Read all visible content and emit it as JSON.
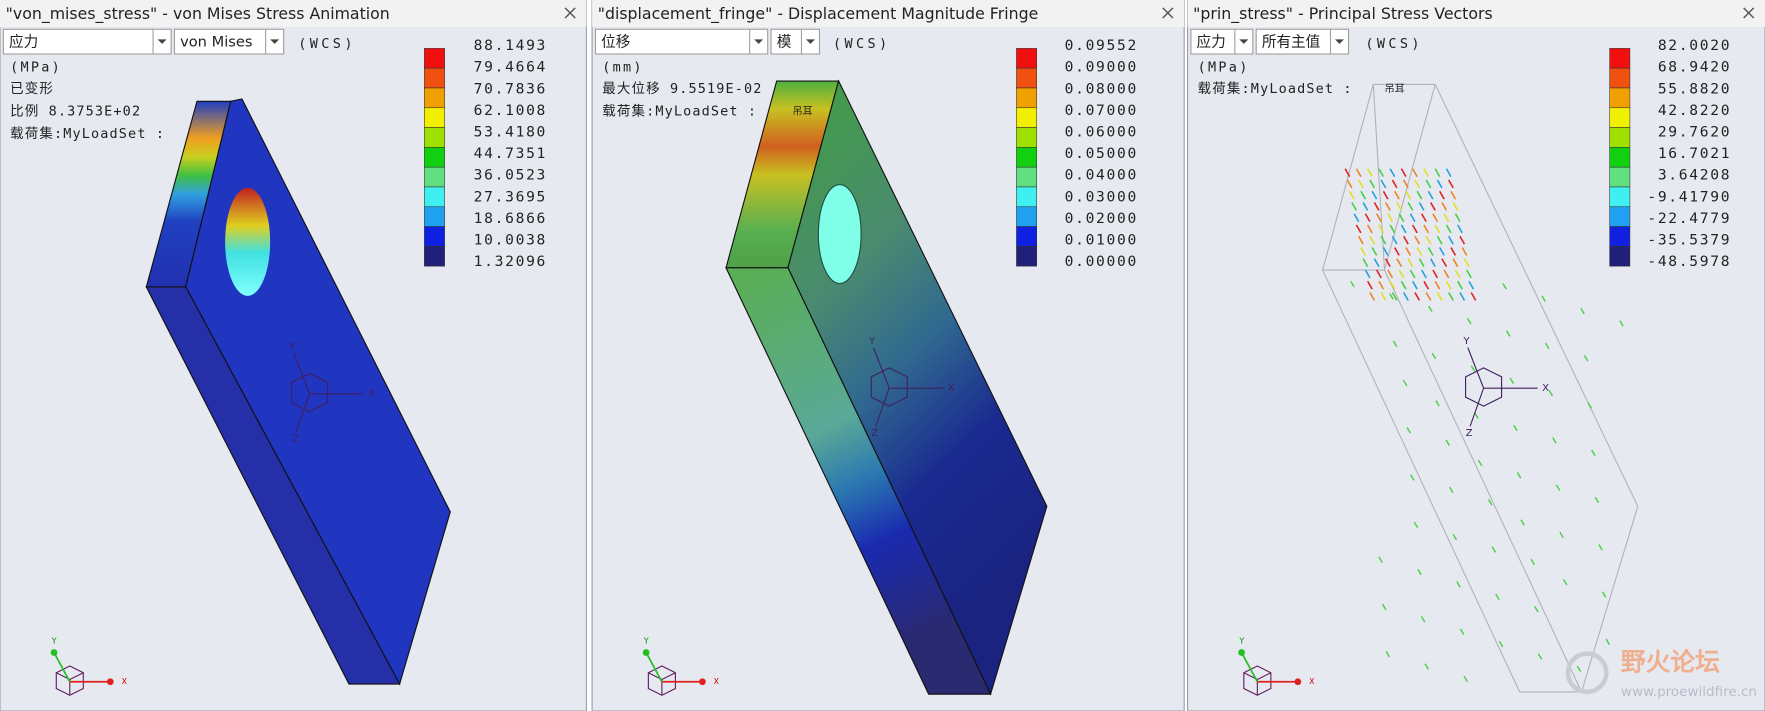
{
  "panels": [
    {
      "title": "\"von_mises_stress\" - von Mises Stress Animation",
      "selectors": [
        "应力",
        "von Mises"
      ],
      "coord": "(WCS)",
      "unit": "(MPa)",
      "info": [
        "已变形",
        "比例  8.3753E+02",
        "载荷集:MyLoadSet  :"
      ],
      "legend": [
        "88.1493",
        "79.4664",
        "70.7836",
        "62.1008",
        "53.4180",
        "44.7351",
        "36.0523",
        "27.3695",
        "18.6866",
        "10.0038",
        "1.32096"
      ]
    },
    {
      "title": "\"displacement_fringe\" - Displacement Magnitude Fringe",
      "selectors": [
        "位移",
        "模"
      ],
      "coord": "(WCS)",
      "unit": "(mm)",
      "info": [
        "最大位移  9.5519E-02",
        "载荷集:MyLoadSet  :"
      ],
      "part_label": "吊耳",
      "legend": [
        "0.09552",
        "0.09000",
        "0.08000",
        "0.07000",
        "0.06000",
        "0.05000",
        "0.04000",
        "0.03000",
        "0.02000",
        "0.01000",
        "0.00000"
      ]
    },
    {
      "title": "\"prin_stress\" - Principal Stress Vectors",
      "selectors": [
        "应力",
        "所有主值"
      ],
      "coord": "(WCS)",
      "unit": "(MPa)",
      "info": [
        "载荷集:MyLoadSet  :"
      ],
      "part_label": "吊耳",
      "legend": [
        "82.0020",
        "68.9420",
        "55.8820",
        "42.8220",
        "29.7620",
        "16.7021",
        "3.64208",
        "-9.41790",
        "-22.4779",
        "-35.5379",
        "-48.5978"
      ]
    }
  ],
  "axis_labels": {
    "x": "X",
    "y": "Y",
    "z": "Z"
  },
  "watermark": {
    "title": "野火论坛",
    "url": "www.proewildfire.cn"
  }
}
